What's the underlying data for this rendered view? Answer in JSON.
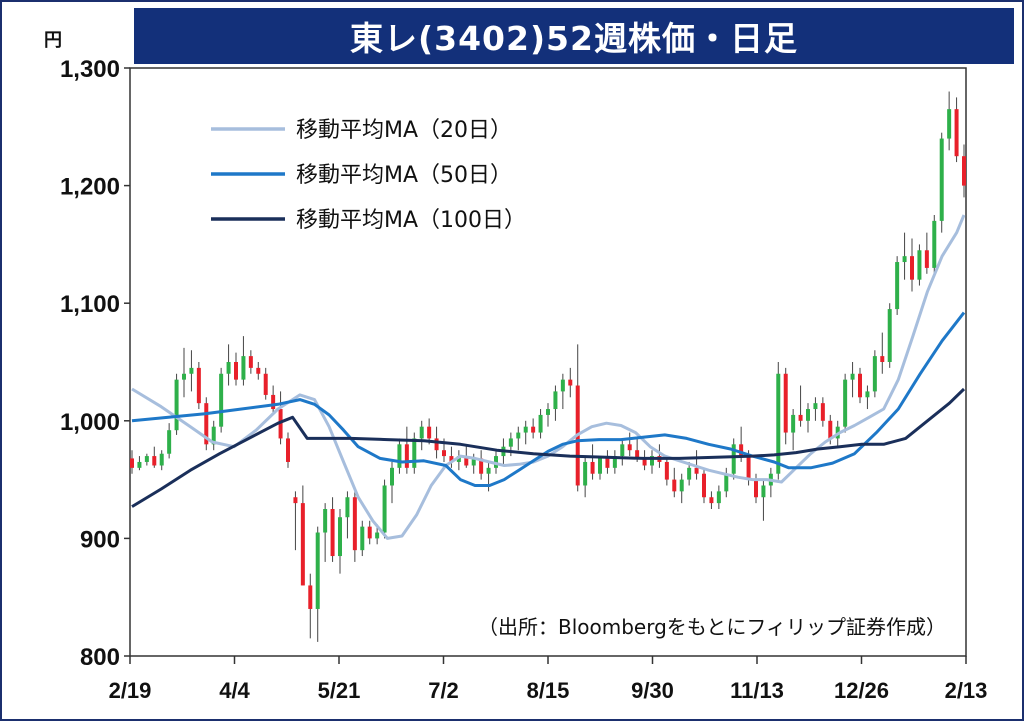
{
  "title": "東レ(3402)52週株価・日足",
  "unit": "円",
  "source_note": "（出所：Bloombergをもとにフィリップ証券作成）",
  "colors": {
    "title_bg": "#13307a",
    "up": "#2eb04a",
    "down": "#e8202a",
    "ma20": "#a7bedd",
    "ma50": "#1e78c8",
    "ma100": "#1a2f5a"
  },
  "chart_data": {
    "type": "candlestick",
    "title": "東レ(3402)52週株価・日足",
    "ylabel": "円",
    "ylim": [
      800,
      1300
    ],
    "yticks": [
      800,
      900,
      1000,
      1100,
      1200,
      1300
    ],
    "ytick_labels": [
      "800",
      "900",
      "1,000",
      "1,100",
      "1,200",
      "1,300"
    ],
    "xticks": [
      "2/19",
      "4/4",
      "5/21",
      "7/2",
      "8/15",
      "9/30",
      "11/13",
      "12/26",
      "2/13"
    ],
    "grid": false,
    "legend_placement": "top-left",
    "series": [
      {
        "name": "移動平均MA（20日）",
        "color": "#a7bedd",
        "points": [
          [
            0,
            1027
          ],
          [
            4,
            1012
          ],
          [
            8,
            995
          ],
          [
            11,
            982
          ],
          [
            14,
            978
          ],
          [
            17,
            992
          ],
          [
            20,
            1010
          ],
          [
            23,
            1022
          ],
          [
            25,
            1018
          ],
          [
            27,
            995
          ],
          [
            29,
            965
          ],
          [
            31,
            935
          ],
          [
            33,
            915
          ],
          [
            35,
            900
          ],
          [
            37,
            902
          ],
          [
            39,
            920
          ],
          [
            41,
            945
          ],
          [
            43,
            962
          ],
          [
            45,
            970
          ],
          [
            47,
            968
          ],
          [
            49,
            965
          ],
          [
            51,
            962
          ],
          [
            53,
            963
          ],
          [
            55,
            965
          ],
          [
            57,
            970
          ],
          [
            59,
            978
          ],
          [
            61,
            988
          ],
          [
            63,
            995
          ],
          [
            65,
            998
          ],
          [
            67,
            996
          ],
          [
            69,
            990
          ],
          [
            71,
            978
          ],
          [
            73,
            970
          ],
          [
            75,
            966
          ],
          [
            77,
            962
          ],
          [
            79,
            958
          ],
          [
            81,
            955
          ],
          [
            83,
            952
          ],
          [
            85,
            950
          ],
          [
            87,
            950
          ],
          [
            89,
            948
          ],
          [
            91,
            960
          ],
          [
            93,
            972
          ],
          [
            95,
            982
          ],
          [
            97,
            990
          ],
          [
            99,
            996
          ],
          [
            101,
            1003
          ],
          [
            103,
            1010
          ],
          [
            105,
            1035
          ],
          [
            107,
            1072
          ],
          [
            109,
            1110
          ],
          [
            111,
            1140
          ],
          [
            113,
            1160
          ],
          [
            114,
            1175
          ]
        ]
      },
      {
        "name": "移動平均MA（50日）",
        "color": "#1e78c8",
        "points": [
          [
            0,
            1000
          ],
          [
            5,
            1003
          ],
          [
            10,
            1006
          ],
          [
            15,
            1010
          ],
          [
            20,
            1014
          ],
          [
            23,
            1018
          ],
          [
            25,
            1014
          ],
          [
            27,
            1005
          ],
          [
            29,
            992
          ],
          [
            31,
            978
          ],
          [
            34,
            968
          ],
          [
            37,
            965
          ],
          [
            40,
            966
          ],
          [
            43,
            962
          ],
          [
            45,
            950
          ],
          [
            47,
            945
          ],
          [
            49,
            945
          ],
          [
            51,
            950
          ],
          [
            53,
            958
          ],
          [
            55,
            966
          ],
          [
            57,
            974
          ],
          [
            59,
            980
          ],
          [
            61,
            983
          ],
          [
            64,
            984
          ],
          [
            67,
            984
          ],
          [
            70,
            986
          ],
          [
            73,
            988
          ],
          [
            76,
            985
          ],
          [
            79,
            980
          ],
          [
            82,
            976
          ],
          [
            85,
            970
          ],
          [
            88,
            965
          ],
          [
            90,
            960
          ],
          [
            93,
            960
          ],
          [
            96,
            964
          ],
          [
            99,
            972
          ],
          [
            102,
            990
          ],
          [
            105,
            1010
          ],
          [
            108,
            1040
          ],
          [
            111,
            1068
          ],
          [
            114,
            1092
          ]
        ]
      },
      {
        "name": "移動平均MA（100日）",
        "color": "#1a2f5a",
        "points": [
          [
            0,
            927
          ],
          [
            4,
            942
          ],
          [
            8,
            958
          ],
          [
            12,
            972
          ],
          [
            16,
            985
          ],
          [
            20,
            998
          ],
          [
            22,
            1003
          ],
          [
            24,
            985
          ],
          [
            26,
            985
          ],
          [
            30,
            985
          ],
          [
            35,
            984
          ],
          [
            40,
            983
          ],
          [
            45,
            980
          ],
          [
            50,
            975
          ],
          [
            55,
            972
          ],
          [
            60,
            970
          ],
          [
            65,
            969
          ],
          [
            70,
            968
          ],
          [
            75,
            968
          ],
          [
            80,
            969
          ],
          [
            85,
            970
          ],
          [
            88,
            971
          ],
          [
            91,
            973
          ],
          [
            94,
            976
          ],
          [
            97,
            978
          ],
          [
            100,
            980
          ],
          [
            103,
            980
          ],
          [
            106,
            985
          ],
          [
            108,
            995
          ],
          [
            110,
            1005
          ],
          [
            112,
            1015
          ],
          [
            114,
            1027
          ]
        ]
      }
    ],
    "candles": [
      [
        0,
        968,
        975,
        955,
        960
      ],
      [
        1,
        960,
        970,
        958,
        965
      ],
      [
        2,
        965,
        972,
        962,
        970
      ],
      [
        3,
        970,
        978,
        960,
        962
      ],
      [
        4,
        962,
        975,
        958,
        972
      ],
      [
        5,
        972,
        998,
        968,
        992
      ],
      [
        6,
        992,
        1040,
        988,
        1035
      ],
      [
        7,
        1035,
        1062,
        1020,
        1040
      ],
      [
        8,
        1040,
        1060,
        1025,
        1045
      ],
      [
        9,
        1045,
        1050,
        1010,
        1015
      ],
      [
        10,
        1015,
        1020,
        975,
        980
      ],
      [
        11,
        980,
        1000,
        975,
        995
      ],
      [
        12,
        995,
        1045,
        990,
        1040
      ],
      [
        13,
        1040,
        1065,
        1030,
        1050
      ],
      [
        14,
        1050,
        1058,
        1030,
        1035
      ],
      [
        15,
        1035,
        1072,
        1030,
        1055
      ],
      [
        16,
        1055,
        1060,
        1040,
        1045
      ],
      [
        17,
        1045,
        1050,
        1035,
        1040
      ],
      [
        18,
        1040,
        1045,
        1018,
        1022
      ],
      [
        19,
        1022,
        1030,
        1005,
        1010
      ],
      [
        20,
        1010,
        1025,
        980,
        985
      ],
      [
        21,
        985,
        990,
        960,
        965
      ],
      [
        22,
        935,
        940,
        890,
        930
      ],
      [
        23,
        930,
        945,
        860,
        860
      ],
      [
        24,
        860,
        870,
        815,
        840
      ],
      [
        25,
        840,
        910,
        812,
        905
      ],
      [
        26,
        905,
        930,
        880,
        925
      ],
      [
        27,
        925,
        935,
        880,
        885
      ],
      [
        28,
        885,
        925,
        870,
        918
      ],
      [
        29,
        918,
        940,
        900,
        935
      ],
      [
        30,
        935,
        940,
        880,
        890
      ],
      [
        31,
        890,
        915,
        885,
        910
      ],
      [
        32,
        910,
        915,
        895,
        900
      ],
      [
        33,
        900,
        912,
        895,
        905
      ],
      [
        34,
        905,
        950,
        900,
        945
      ],
      [
        35,
        945,
        965,
        930,
        960
      ],
      [
        36,
        960,
        985,
        955,
        980
      ],
      [
        37,
        980,
        995,
        955,
        960
      ],
      [
        38,
        960,
        990,
        955,
        985
      ],
      [
        39,
        985,
        1000,
        975,
        995
      ],
      [
        40,
        995,
        1002,
        980,
        985
      ],
      [
        41,
        985,
        995,
        968,
        975
      ],
      [
        42,
        975,
        985,
        965,
        970
      ],
      [
        43,
        970,
        978,
        960,
        965
      ],
      [
        44,
        965,
        975,
        958,
        970
      ],
      [
        45,
        970,
        980,
        960,
        962
      ],
      [
        46,
        962,
        972,
        955,
        968
      ],
      [
        47,
        968,
        975,
        950,
        955
      ],
      [
        48,
        955,
        965,
        940,
        960
      ],
      [
        49,
        960,
        975,
        955,
        970
      ],
      [
        50,
        970,
        985,
        962,
        978
      ],
      [
        51,
        978,
        990,
        970,
        985
      ],
      [
        52,
        985,
        995,
        975,
        990
      ],
      [
        53,
        990,
        1000,
        980,
        995
      ],
      [
        54,
        995,
        1002,
        985,
        990
      ],
      [
        55,
        990,
        1010,
        985,
        1005
      ],
      [
        56,
        1005,
        1015,
        995,
        1010
      ],
      [
        57,
        1010,
        1030,
        1000,
        1025
      ],
      [
        58,
        1025,
        1040,
        1010,
        1035
      ],
      [
        59,
        1035,
        1045,
        1020,
        1030
      ],
      [
        60,
        1030,
        1065,
        940,
        945
      ],
      [
        61,
        945,
        970,
        935,
        965
      ],
      [
        62,
        965,
        980,
        950,
        955
      ],
      [
        63,
        955,
        970,
        950,
        968
      ],
      [
        64,
        968,
        975,
        955,
        960
      ],
      [
        65,
        960,
        975,
        955,
        970
      ],
      [
        66,
        970,
        985,
        962,
        980
      ],
      [
        67,
        980,
        990,
        970,
        975
      ],
      [
        68,
        975,
        985,
        965,
        968
      ],
      [
        69,
        968,
        975,
        958,
        962
      ],
      [
        70,
        962,
        975,
        955,
        970
      ],
      [
        71,
        970,
        980,
        960,
        965
      ],
      [
        72,
        965,
        970,
        945,
        950
      ],
      [
        73,
        950,
        960,
        935,
        940
      ],
      [
        74,
        940,
        955,
        930,
        950
      ],
      [
        75,
        950,
        965,
        945,
        960
      ],
      [
        76,
        960,
        975,
        950,
        955
      ],
      [
        77,
        955,
        960,
        930,
        935
      ],
      [
        78,
        935,
        940,
        925,
        930
      ],
      [
        79,
        930,
        945,
        925,
        940
      ],
      [
        80,
        940,
        960,
        935,
        955
      ],
      [
        81,
        955,
        985,
        950,
        980
      ],
      [
        82,
        980,
        995,
        965,
        970
      ],
      [
        83,
        970,
        975,
        945,
        950
      ],
      [
        84,
        950,
        955,
        930,
        935
      ],
      [
        85,
        935,
        950,
        915,
        945
      ],
      [
        86,
        945,
        960,
        935,
        955
      ],
      [
        87,
        955,
        1050,
        950,
        1040
      ],
      [
        88,
        1040,
        1045,
        980,
        990
      ],
      [
        89,
        990,
        1010,
        975,
        1005
      ],
      [
        90,
        1005,
        1030,
        995,
        1000
      ],
      [
        91,
        1000,
        1015,
        990,
        1010
      ],
      [
        92,
        1010,
        1020,
        1000,
        1015
      ],
      [
        93,
        1015,
        1020,
        995,
        1000
      ],
      [
        94,
        1000,
        1005,
        980,
        985
      ],
      [
        95,
        985,
        1000,
        978,
        995
      ],
      [
        96,
        995,
        1040,
        990,
        1035
      ],
      [
        97,
        1035,
        1050,
        1020,
        1040
      ],
      [
        98,
        1040,
        1045,
        1015,
        1020
      ],
      [
        99,
        1020,
        1030,
        1010,
        1025
      ],
      [
        100,
        1025,
        1060,
        1020,
        1055
      ],
      [
        101,
        1055,
        1075,
        1040,
        1050
      ],
      [
        102,
        1050,
        1100,
        1045,
        1095
      ],
      [
        103,
        1095,
        1140,
        1090,
        1135
      ],
      [
        104,
        1135,
        1160,
        1120,
        1140
      ],
      [
        105,
        1140,
        1155,
        1110,
        1120
      ],
      [
        106,
        1120,
        1150,
        1115,
        1145
      ],
      [
        107,
        1145,
        1160,
        1125,
        1130
      ],
      [
        108,
        1130,
        1175,
        1125,
        1170
      ],
      [
        109,
        1170,
        1245,
        1160,
        1240
      ],
      [
        110,
        1240,
        1280,
        1230,
        1265
      ],
      [
        111,
        1265,
        1275,
        1220,
        1225
      ],
      [
        112,
        1225,
        1235,
        1190,
        1200
      ]
    ]
  }
}
